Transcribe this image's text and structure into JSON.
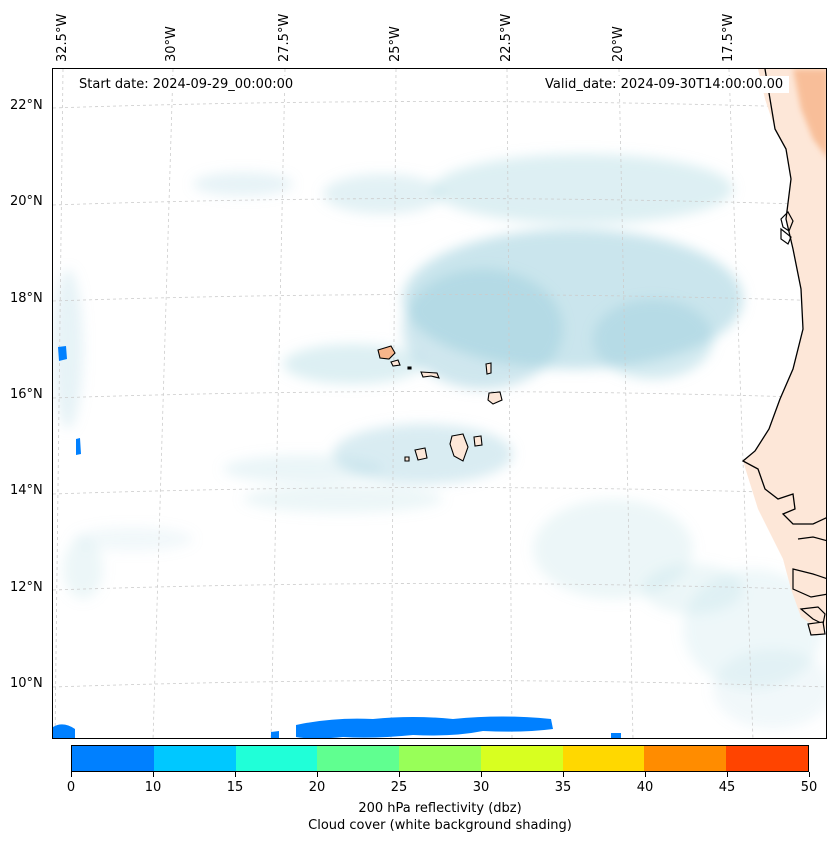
{
  "map": {
    "start_date": "Start date: 2024-09-29_00:00:00",
    "valid_date": "Valid_date: 2024-09-30T14:00:00.00",
    "longitude_labels": [
      "32.5°W",
      "30°W",
      "27.5°W",
      "25°W",
      "22.5°W",
      "20°W",
      "17.5°W"
    ],
    "latitude_labels": [
      "22°N",
      "20°N",
      "18°N",
      "16°N",
      "14°N",
      "12°N",
      "10°N"
    ],
    "land_color": "#f7b58a",
    "ocean_color": "#ffffff",
    "cloud_color": "#9fd0de"
  },
  "colorbar": {
    "tick_labels": [
      "0",
      "10",
      "15",
      "20",
      "25",
      "30",
      "35",
      "40",
      "45",
      "50"
    ],
    "colors": [
      "#0080ff",
      "#00c8ff",
      "#20ffd8",
      "#60ff90",
      "#98ff58",
      "#d8ff20",
      "#ffd800",
      "#ff8c00",
      "#ff4400"
    ],
    "title_line1": "200 hPa reflectivity (dbz)",
    "title_line2": "Cloud cover (white background shading)"
  }
}
